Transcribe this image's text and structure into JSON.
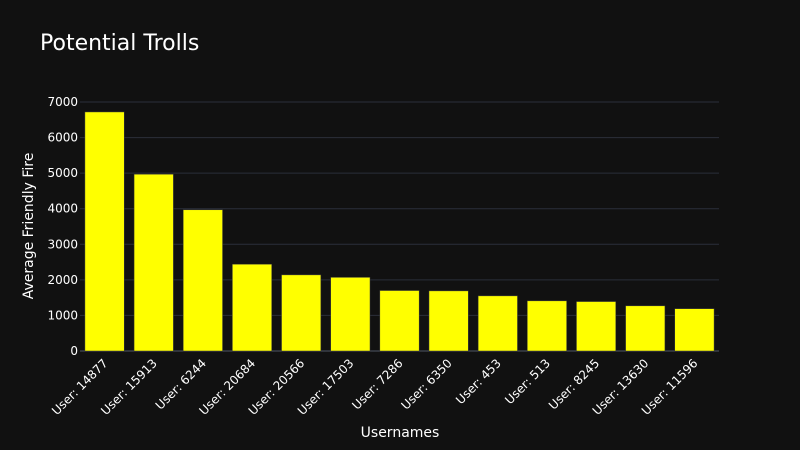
{
  "chart_data": {
    "type": "bar",
    "title": "Potential Trolls",
    "xlabel": "Usernames",
    "ylabel": "Average Friendly Fire",
    "categories": [
      "User: 14877",
      "User: 15913",
      "User: 6244",
      "User: 20684",
      "User: 20566",
      "User: 17503",
      "User: 7286",
      "User: 6350",
      "User: 453",
      "User: 513",
      "User: 8245",
      "User: 13630",
      "User: 11596"
    ],
    "values": [
      6720,
      4970,
      3970,
      2440,
      2140,
      2070,
      1700,
      1690,
      1550,
      1410,
      1390,
      1270,
      1190
    ],
    "ylim": [
      0,
      7000
    ],
    "yticks": [
      0,
      1000,
      2000,
      3000,
      4000,
      5000,
      6000,
      7000
    ],
    "grid": true,
    "legend": "none",
    "colors": {
      "background": "#111111",
      "bar": "#ffff00",
      "grid": "#2b2f3a",
      "text": "#ffffff"
    }
  }
}
